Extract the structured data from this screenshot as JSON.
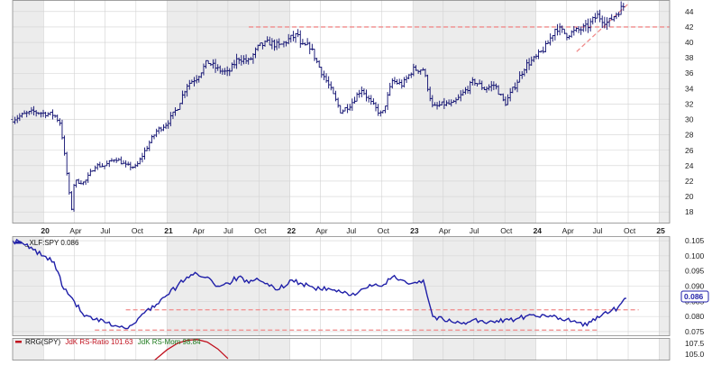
{
  "colors": {
    "price_bars": "#0b0b6e",
    "ratio_line": "#1f1fa8",
    "rrg_ratio": "#c1121f",
    "rrg_mom": "#1d7a1d",
    "support_line": "#f08a8a",
    "band_dark": "#ececec",
    "band_light": "#ffffff",
    "grid": "#d2d2d2",
    "frame": "#8a8a8a"
  },
  "chart_data": [
    {
      "type": "bar",
      "subtype": "ohlc",
      "x_start": "2019-10",
      "x_end": "2025-02",
      "xaxis": {
        "labels": [
          "20",
          "Apr",
          "Jul",
          "Oct",
          "21",
          "Apr",
          "Jul",
          "Oct",
          "22",
          "Apr",
          "Jul",
          "Oct",
          "23",
          "Apr",
          "Jul",
          "Oct",
          "24",
          "Apr",
          "Jul",
          "Oct",
          "25"
        ],
        "label_dates": [
          "2020-01",
          "2020-04",
          "2020-07",
          "2020-10",
          "2021-01",
          "2021-04",
          "2021-07",
          "2021-10",
          "2022-01",
          "2022-04",
          "2022-07",
          "2022-10",
          "2023-01",
          "2023-04",
          "2023-07",
          "2023-10",
          "2024-01",
          "2024-04",
          "2024-07",
          "2024-10",
          "2025-01"
        ],
        "bold_labels": [
          "20",
          "21",
          "22",
          "23",
          "24",
          "25"
        ]
      },
      "yaxis": {
        "range": [
          16.5,
          45.5
        ],
        "ticks": [
          "18",
          "20",
          "22",
          "24",
          "26",
          "28",
          "30",
          "32",
          "34",
          "36",
          "38",
          "40",
          "42",
          "44"
        ],
        "tick_values": [
          18,
          20,
          22,
          24,
          26,
          28,
          30,
          32,
          34,
          36,
          38,
          40,
          42,
          44
        ]
      },
      "grid": true,
      "anchors": [
        [
          "2019-10",
          30.0
        ],
        [
          "2019-11",
          30.6
        ],
        [
          "2019-12",
          31.0
        ],
        [
          "2020-01",
          30.8
        ],
        [
          "2020-02",
          30.6
        ],
        [
          "2020-02-20",
          29.5
        ],
        [
          "2020-03-10",
          23.0
        ],
        [
          "2020-03-23",
          18.0
        ],
        [
          "2020-04",
          22.0
        ],
        [
          "2020-05",
          21.8
        ],
        [
          "2020-06",
          24.0
        ],
        [
          "2020-07",
          24.0
        ],
        [
          "2020-08",
          25.0
        ],
        [
          "2020-09",
          24.0
        ],
        [
          "2020-10",
          23.8
        ],
        [
          "2020-11-10",
          27.0
        ],
        [
          "2020-12",
          28.5
        ],
        [
          "2021-01",
          29.5
        ],
        [
          "2021-02",
          31.5
        ],
        [
          "2021-03",
          34.5
        ],
        [
          "2021-04",
          35.5
        ],
        [
          "2021-05",
          37.5
        ],
        [
          "2021-06",
          36.5
        ],
        [
          "2021-07",
          36.0
        ],
        [
          "2021-08",
          38.0
        ],
        [
          "2021-09",
          37.5
        ],
        [
          "2021-10",
          39.5
        ],
        [
          "2021-11",
          40.0
        ],
        [
          "2021-12",
          39.5
        ],
        [
          "2022-01",
          40.5
        ],
        [
          "2022-01-25",
          41.0
        ],
        [
          "2022-02",
          39.5
        ],
        [
          "2022-03",
          39.5
        ],
        [
          "2022-04",
          36.5
        ],
        [
          "2022-05",
          34.0
        ],
        [
          "2022-06",
          31.0
        ],
        [
          "2022-07",
          32.0
        ],
        [
          "2022-08",
          34.0
        ],
        [
          "2022-09",
          32.0
        ],
        [
          "2022-10",
          30.5
        ],
        [
          "2022-11",
          35.0
        ],
        [
          "2022-12",
          34.5
        ],
        [
          "2023-01",
          36.5
        ],
        [
          "2023-02",
          36.5
        ],
        [
          "2023-03",
          31.5
        ],
        [
          "2023-04",
          32.0
        ],
        [
          "2023-05",
          32.0
        ],
        [
          "2023-06",
          33.5
        ],
        [
          "2023-07",
          35.0
        ],
        [
          "2023-08",
          34.0
        ],
        [
          "2023-09",
          34.5
        ],
        [
          "2023-10",
          32.0
        ],
        [
          "2023-11",
          34.5
        ],
        [
          "2023-12",
          37.0
        ],
        [
          "2024-01",
          38.0
        ],
        [
          "2024-02",
          39.5
        ],
        [
          "2024-03",
          42.0
        ],
        [
          "2024-04",
          41.0
        ],
        [
          "2024-05",
          41.5
        ],
        [
          "2024-06",
          42.0
        ],
        [
          "2024-07",
          43.5
        ],
        [
          "2024-08",
          42.5
        ],
        [
          "2024-09",
          44.0
        ],
        [
          "2024-09-20",
          44.8
        ]
      ],
      "annotations": [
        {
          "kind": "horizontal",
          "x_from": "2021-09",
          "x_to": "2025-02",
          "y": 42
        },
        {
          "kind": "trend",
          "x_from": "2024-05",
          "y_from": 38.8,
          "x_to": "2024-10",
          "y_to": 45.0
        }
      ]
    },
    {
      "type": "line",
      "legend": "_XLF:SPY 0.086",
      "x_start": "2019-10",
      "x_end": "2025-02",
      "yaxis": {
        "range": [
          0.0735,
          0.1065
        ],
        "ticks": [
          "0.075",
          "0.080",
          "0.085",
          "0.090",
          "0.095",
          "0.100",
          "0.105"
        ],
        "tick_values": [
          0.075,
          0.08,
          0.085,
          0.09,
          0.095,
          0.1,
          0.105
        ]
      },
      "last_value": "0.086",
      "grid": true,
      "x": [
        "2019-10",
        "2019-11",
        "2019-12",
        "2020-01",
        "2020-02",
        "2020-03",
        "2020-04",
        "2020-05",
        "2020-06",
        "2020-07",
        "2020-08",
        "2020-09",
        "2020-10",
        "2020-11",
        "2020-12",
        "2021-01",
        "2021-02",
        "2021-03",
        "2021-04",
        "2021-05",
        "2021-06",
        "2021-07",
        "2021-08",
        "2021-09",
        "2021-10",
        "2021-11",
        "2021-12",
        "2022-01",
        "2022-02",
        "2022-03",
        "2022-04",
        "2022-05",
        "2022-06",
        "2022-07",
        "2022-08",
        "2022-09",
        "2022-10",
        "2022-11",
        "2022-12",
        "2023-01",
        "2023-02",
        "2023-03",
        "2023-04",
        "2023-05",
        "2023-06",
        "2023-07",
        "2023-08",
        "2023-09",
        "2023-10",
        "2023-11",
        "2023-12",
        "2024-01",
        "2024-02",
        "2024-03",
        "2024-04",
        "2024-05",
        "2024-06",
        "2024-07",
        "2024-08",
        "2024-09",
        "2024-09-25"
      ],
      "y": [
        0.105,
        0.104,
        0.102,
        0.1,
        0.098,
        0.089,
        0.085,
        0.08,
        0.079,
        0.078,
        0.077,
        0.076,
        0.078,
        0.082,
        0.084,
        0.087,
        0.09,
        0.093,
        0.094,
        0.093,
        0.09,
        0.091,
        0.093,
        0.091,
        0.092,
        0.09,
        0.089,
        0.092,
        0.091,
        0.09,
        0.089,
        0.089,
        0.088,
        0.087,
        0.089,
        0.09,
        0.09,
        0.093,
        0.092,
        0.091,
        0.092,
        0.08,
        0.079,
        0.078,
        0.078,
        0.079,
        0.078,
        0.078,
        0.079,
        0.079,
        0.08,
        0.08,
        0.08,
        0.08,
        0.079,
        0.078,
        0.077,
        0.08,
        0.081,
        0.083,
        0.086
      ],
      "annotations": [
        {
          "kind": "horizontal",
          "x_from": "2020-09",
          "x_to": "2024-11",
          "y": 0.0822
        },
        {
          "kind": "horizontal",
          "x_from": "2020-06",
          "x_to": "2024-07",
          "y": 0.0755
        }
      ]
    },
    {
      "type": "line",
      "legend": {
        "lead": "RRG(SPY)",
        "ratio": "JdK RS-Ratio 101.63",
        "mom": "JdK RS-Mom 98.84"
      },
      "yaxis": {
        "ticks": [
          "105.0",
          "107.5"
        ],
        "tick_values": [
          105.0,
          107.5
        ]
      },
      "visible_ticks": [
        "105.0",
        "107.5"
      ],
      "series": [
        {
          "name": "JdK RS-Ratio 101.63",
          "x": [
            "2020-11",
            "2021-01",
            "2021-02",
            "2021-03",
            "2021-04",
            "2021-05",
            "2021-06",
            "2021-07"
          ],
          "y": [
            102.0,
            106.0,
            107.5,
            108.2,
            108.4,
            107.8,
            106.2,
            104.0
          ]
        }
      ]
    }
  ]
}
